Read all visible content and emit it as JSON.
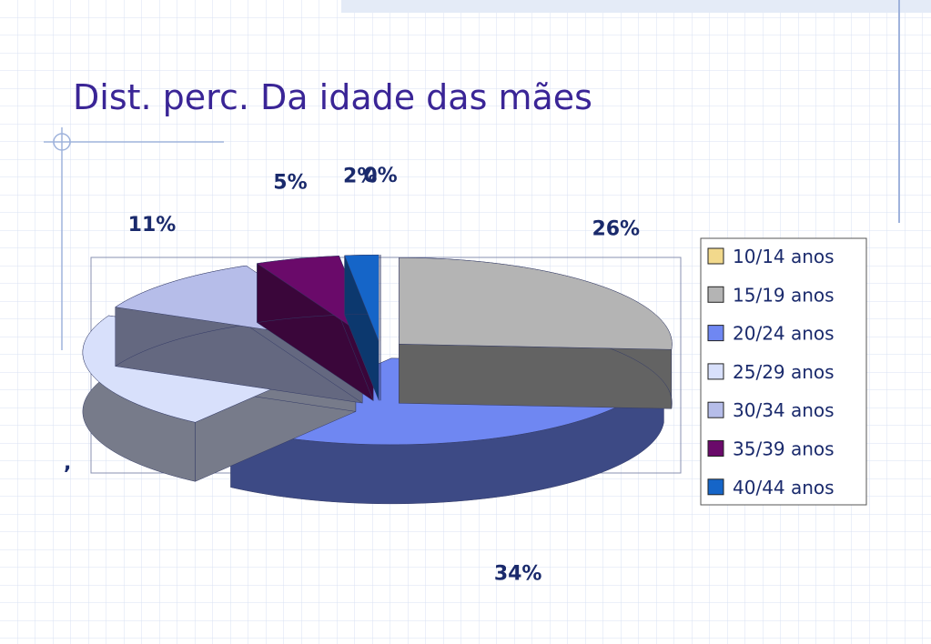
{
  "chart_data": {
    "type": "pie",
    "title": "Dist. perc. Da idade das mães",
    "categories": [
      "10/14 anos",
      "15/19 anos",
      "20/24 anos",
      "25/29 anos",
      "30/34 anos",
      "35/39 anos",
      "40/44 anos"
    ],
    "values": [
      0,
      26,
      34,
      22,
      11,
      5,
      2
    ],
    "value_labels": [
      "0%",
      "26%",
      "34%",
      ",",
      "11%",
      "5%",
      "2%"
    ],
    "colors": [
      "#f2d98c",
      "#b4b4b4",
      "#6f87f2",
      "#d8e0fb",
      "#b6bde9",
      "#6a0a6a",
      "#1565c8"
    ],
    "legend": "right"
  }
}
